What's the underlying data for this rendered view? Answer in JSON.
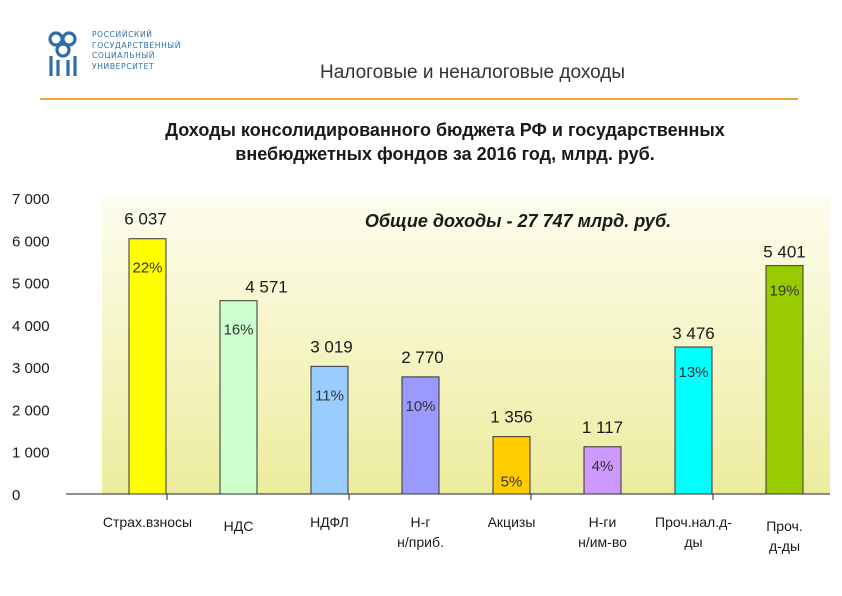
{
  "header": {
    "university_lines": [
      "РОССИЙСКИЙ",
      "ГОСУДАРСТВЕННЫЙ",
      "СОЦИАЛЬНЫЙ",
      "УНИВЕРСИТЕТ"
    ],
    "section_title": "Налоговые и неналоговые доходы"
  },
  "colors": {
    "accent_rule": "#f0a33a",
    "plot_bg_top": "#fdfdee",
    "plot_bg_bottom": "#ecec9e"
  },
  "chart_data": {
    "type": "bar",
    "title": "Доходы консолидированного бюджета РФ и государственных внебюджетных фондов за 2016 год, млрд. руб.",
    "title_lines": [
      "Доходы консолидированного бюджета РФ и государственных",
      "внебюджетных фондов за 2016 год, млрд. руб."
    ],
    "annotation": "Общие доходы - 27 747 млрд. руб.",
    "ylim": [
      0,
      7000
    ],
    "yticks": [
      0,
      1000,
      2000,
      3000,
      4000,
      5000,
      6000,
      7000
    ],
    "ytick_labels": [
      "0",
      "1 000",
      "2 000",
      "3 000",
      "4 000",
      "5 000",
      "6 000",
      "7 000"
    ],
    "grid": false,
    "xlabel": "",
    "ylabel": "",
    "categories": [
      [
        "Страх.взносы"
      ],
      [
        "НДС"
      ],
      [
        "НДФЛ"
      ],
      [
        "Н-г",
        "н/приб."
      ],
      [
        "Акцизы"
      ],
      [
        "Н-ги",
        "н/им-во"
      ],
      [
        "Проч.нал.д-",
        "ды"
      ],
      [
        "Проч.",
        "д-ды"
      ]
    ],
    "values": [
      6037,
      4571,
      3019,
      2770,
      1356,
      1117,
      3476,
      5401
    ],
    "value_labels": [
      "6 037",
      "4 571",
      "3 019",
      "2 770",
      "1 356",
      "1 117",
      "3 476",
      "5 401"
    ],
    "shares": [
      "22%",
      "16%",
      "11%",
      "10%",
      "5%",
      "4%",
      "13%",
      "19%"
    ],
    "bar_colors": [
      "#ffff00",
      "#ccffcc",
      "#99ccff",
      "#9999ff",
      "#ffcc00",
      "#cc99ff",
      "#00ffff",
      "#99cc00"
    ]
  }
}
